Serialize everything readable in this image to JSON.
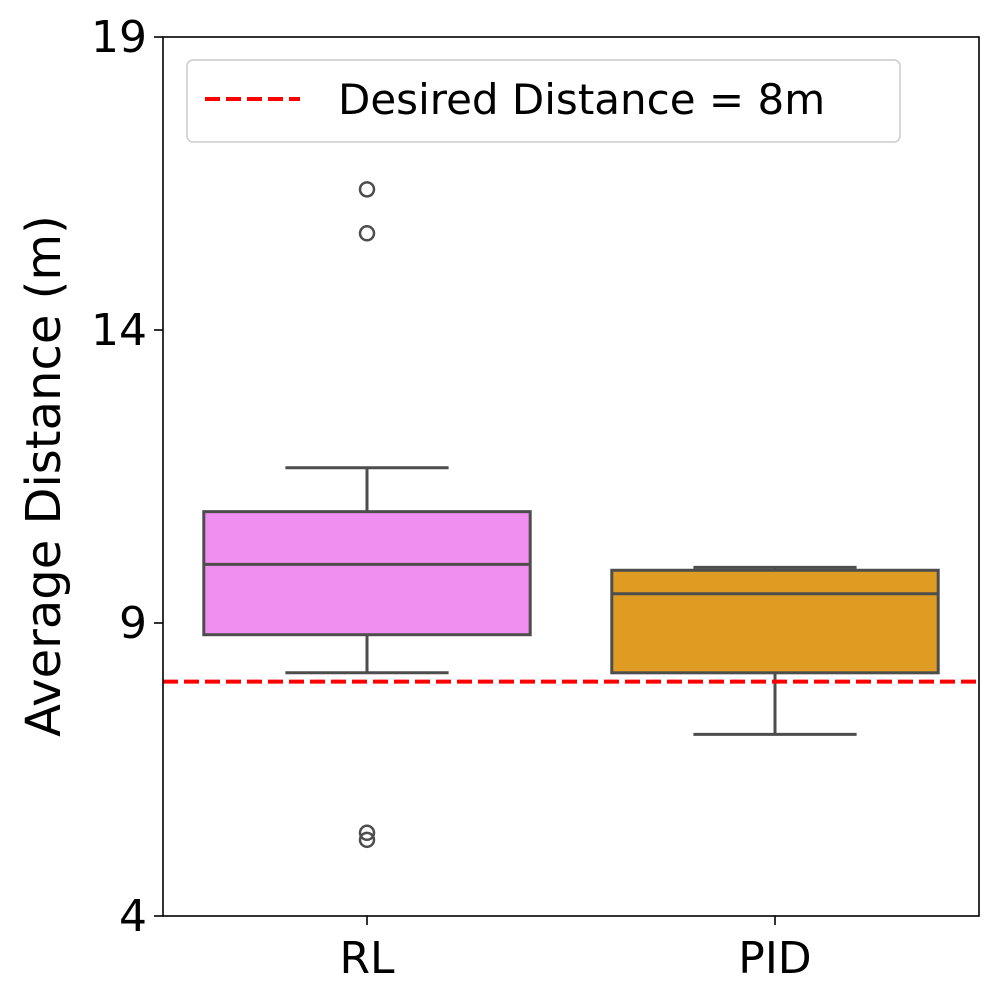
{
  "chart_data": {
    "type": "boxplot",
    "title": "",
    "xlabel": "",
    "ylabel": "Average Distance (m)",
    "ylim": [
      4,
      19
    ],
    "yticks": [
      4,
      9,
      14,
      19
    ],
    "categories": [
      "RL",
      "PID"
    ],
    "boxes": [
      {
        "name": "RL",
        "color": "#f08fef",
        "whisker_low": 8.15,
        "q1": 8.8,
        "median": 10.0,
        "q3": 10.9,
        "whisker_high": 11.65,
        "outliers": [
          5.3,
          5.42,
          15.65,
          16.4
        ]
      },
      {
        "name": "PID",
        "color": "#e09b22",
        "whisker_low": 7.1,
        "q1": 8.15,
        "median": 9.5,
        "q3": 9.9,
        "whisker_high": 9.95,
        "outliers": []
      }
    ],
    "reference_line": {
      "value": 8.0,
      "color": "#ff0000",
      "style": "dashed",
      "label": "Desired Distance = 8m"
    },
    "legend": {
      "location": "top-left"
    },
    "grid": false
  }
}
